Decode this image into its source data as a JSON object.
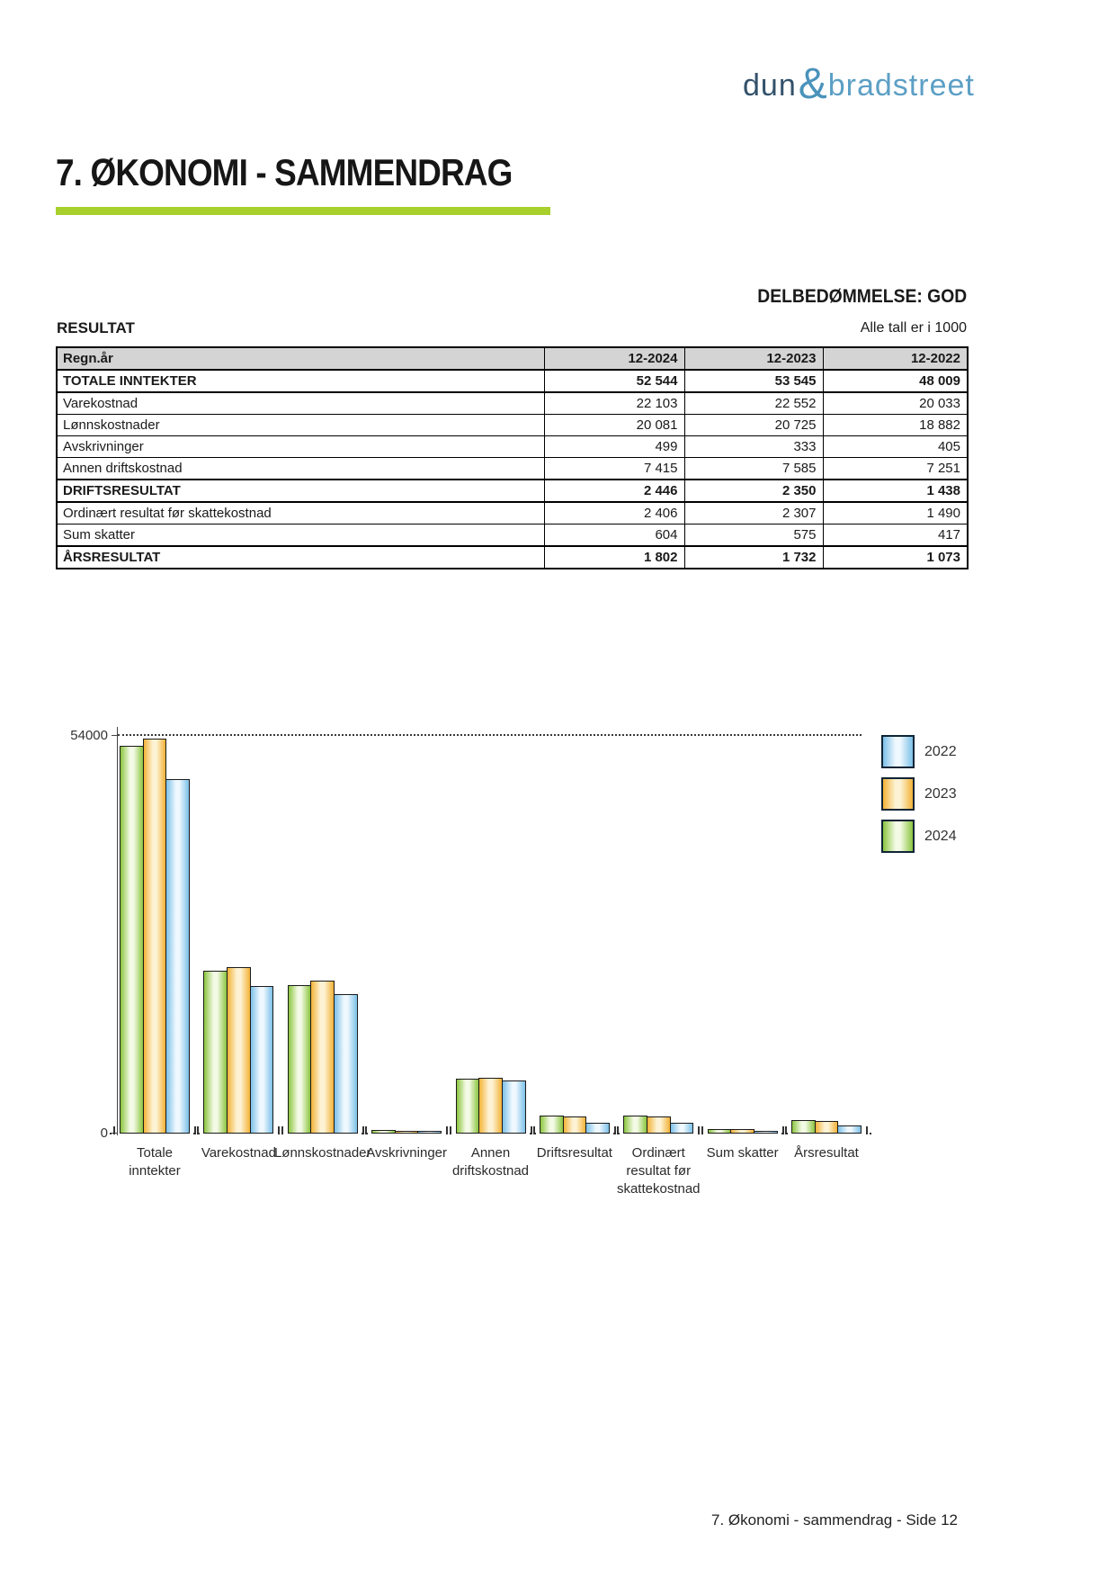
{
  "logo": {
    "part1": "dun",
    "amp": "&",
    "part2": "bradstreet"
  },
  "page_title": "7. ØKONOMI - SAMMENDRAG",
  "assessment_text": "DELBEDØMMELSE: GOD",
  "section_label": "RESULTAT",
  "units_note": "Alle tall er i 1000",
  "colors": {
    "accent_green": "#a8d02c",
    "table_header_bg": "#d4d4d4",
    "logo_dark_blue": "#33516b",
    "logo_light_blue": "#5c9fc5"
  },
  "table": {
    "header": [
      "Regn.år",
      "12-2024",
      "12-2023",
      "12-2022"
    ],
    "rows": [
      {
        "label": "TOTALE INNTEKTER",
        "values": [
          "52 544",
          "53 545",
          "48 009"
        ],
        "bold": true
      },
      {
        "label": "Varekostnad",
        "values": [
          "22 103",
          "22 552",
          "20 033"
        ],
        "bold": false
      },
      {
        "label": "Lønnskostnader",
        "values": [
          "20 081",
          "20 725",
          "18 882"
        ],
        "bold": false
      },
      {
        "label": "Avskrivninger",
        "values": [
          "499",
          "333",
          "405"
        ],
        "bold": false
      },
      {
        "label": "Annen driftskostnad",
        "values": [
          "7 415",
          "7 585",
          "7 251"
        ],
        "bold": false
      },
      {
        "label": "DRIFTSRESULTAT",
        "values": [
          "2 446",
          "2 350",
          "1 438"
        ],
        "bold": true
      },
      {
        "label": "Ordinært resultat før skattekostnad",
        "values": [
          "2 406",
          "2 307",
          "1 490"
        ],
        "bold": false
      },
      {
        "label": "Sum skatter",
        "values": [
          "604",
          "575",
          "417"
        ],
        "bold": false
      },
      {
        "label": "ÅRSRESULTAT",
        "values": [
          "1 802",
          "1 732",
          "1 073"
        ],
        "bold": true
      }
    ]
  },
  "chart_data": {
    "type": "bar",
    "title": "",
    "categories": [
      "Totale inntekter",
      "Varekostnad",
      "Lønnskostnader",
      "Avskrivninger",
      "Annen driftskostnad",
      "Driftsresultat",
      "Ordinært resultat før skattekostnad",
      "Sum skatter",
      "Årsresultat"
    ],
    "category_label_lines": [
      [
        "Totale",
        "inntekter"
      ],
      [
        "Varekostnad"
      ],
      [
        "Lønnskostnader"
      ],
      [
        "Avskrivninger"
      ],
      [
        "Annen",
        "driftskostnad"
      ],
      [
        "Driftsresultat"
      ],
      [
        "Ordinært",
        "resultat før",
        "skattekostnad"
      ],
      [
        "Sum skatter"
      ],
      [
        "Årsresultat"
      ]
    ],
    "series": [
      {
        "name": "2024",
        "values": [
          52544,
          22103,
          20081,
          499,
          7415,
          2446,
          2406,
          604,
          1802
        ],
        "edge_color": "#8bc53f",
        "center_color": "#f3fae5"
      },
      {
        "name": "2023",
        "values": [
          53545,
          22552,
          20725,
          333,
          7585,
          2350,
          2307,
          575,
          1732
        ],
        "edge_color": "#f3b237",
        "center_color": "#fdf3d4"
      },
      {
        "name": "2022",
        "values": [
          48009,
          20033,
          18882,
          405,
          7251,
          1438,
          1490,
          417,
          1073
        ],
        "edge_color": "#7cc0e8",
        "center_color": "#eef8fe"
      }
    ],
    "legend": [
      {
        "label": "2022",
        "series": "2022"
      },
      {
        "label": "2023",
        "series": "2023"
      },
      {
        "label": "2024",
        "series": "2024"
      }
    ],
    "ylim": [
      0,
      54000
    ],
    "ytick_labels": {
      "top": "54000",
      "bottom": "0"
    },
    "gridline_value": 54000,
    "grid": "single dotted horizontal line at 54000",
    "legend_position": "top-right"
  },
  "footer": {
    "text": "7. Økonomi - sammendrag - Side 12"
  }
}
